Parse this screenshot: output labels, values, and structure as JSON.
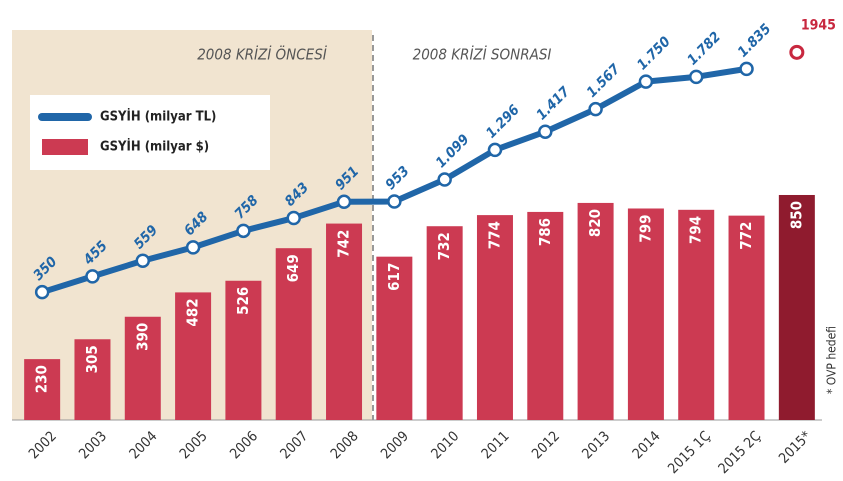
{
  "chart_data": {
    "type": "bar_line",
    "annotations": [
      "2008 KRİZİ ÖNCESİ",
      "2008 KRİZİ SONRASI"
    ],
    "footnote": "* OVP hedefi",
    "categories": [
      "2002",
      "2003",
      "2004",
      "2005",
      "2006",
      "2007",
      "2008",
      "2009",
      "2010",
      "2011",
      "2012",
      "2013",
      "2014",
      "2015 1Ç",
      "2015 2Ç",
      "2015*"
    ],
    "ylim": [
      0,
      1511
    ],
    "y2lim": [
      -500,
      2160
    ],
    "series": [
      {
        "name": "GSYİH (milyar TL)",
        "type": "line",
        "axis": "y2",
        "color": "#2066a8",
        "point_colors": [
          "#2066a8",
          "#2066a8",
          "#2066a8",
          "#2066a8",
          "#2066a8",
          "#2066a8",
          "#2066a8",
          "#2066a8",
          "#2066a8",
          "#2066a8",
          "#2066a8",
          "#2066a8",
          "#2066a8",
          "#2066a8",
          "#2066a8",
          "#c8283f"
        ],
        "values": [
          350,
          455,
          559,
          648,
          758,
          843,
          951,
          953,
          1099,
          1296,
          1417,
          1567,
          1750,
          1782,
          1835,
          1945
        ],
        "value_labels": [
          "350",
          "455",
          "559",
          "648",
          "758",
          "843",
          "951",
          "953",
          "1.099",
          "1.296",
          "1.417",
          "1.567",
          "1.750",
          "1.782",
          "1.835",
          "1945"
        ]
      },
      {
        "name": "GSYİH (milyar $)",
        "type": "bar",
        "color": "#cc3a52",
        "colors": [
          "#cc3a52",
          "#cc3a52",
          "#cc3a52",
          "#cc3a52",
          "#cc3a52",
          "#cc3a52",
          "#cc3a52",
          "#cc3a52",
          "#cc3a52",
          "#cc3a52",
          "#cc3a52",
          "#cc3a52",
          "#cc3a52",
          "#cc3a52",
          "#cc3a52",
          "#8f1b2e"
        ],
        "values": [
          230,
          305,
          390,
          482,
          526,
          649,
          742,
          617,
          732,
          774,
          786,
          820,
          799,
          794,
          772,
          850
        ]
      }
    ]
  }
}
